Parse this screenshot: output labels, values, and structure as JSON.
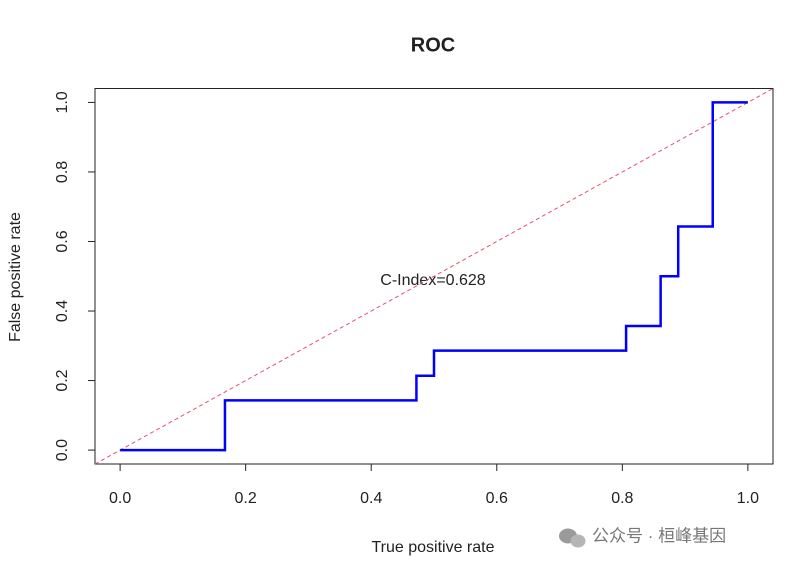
{
  "chart_data": {
    "type": "line",
    "title": "ROC",
    "x_label": "True positive rate",
    "y_label": "False positive rate",
    "x": [
      0,
      0.167,
      0.167,
      0.472,
      0.472,
      0.5,
      0.5,
      0.806,
      0.806,
      0.861,
      0.861,
      0.889,
      0.889,
      0.944,
      0.944,
      1
    ],
    "series": [
      {
        "color": "#0000ff",
        "values": [
          0,
          0,
          0.143,
          0.143,
          0.214,
          0.214,
          0.286,
          0.286,
          0.357,
          0.357,
          0.5,
          0.5,
          0.643,
          0.643,
          1,
          1
        ]
      }
    ],
    "diagonal": true,
    "diagonal_color": "#e8506e",
    "annotation": "C-Index=0.628",
    "xlim": [
      -0.04,
      1.04
    ],
    "ylim": [
      -0.04,
      1.04
    ],
    "xticks": [
      {
        "value": 0,
        "label": "0.0"
      },
      0.2,
      0.4,
      0.6,
      0.8,
      {
        "value": 1,
        "label": "1.0"
      }
    ],
    "yticks": [
      {
        "value": 0,
        "label": "0.0"
      },
      0.2,
      0.4,
      0.6,
      0.8,
      {
        "value": 1,
        "label": "1.0"
      }
    ]
  },
  "watermark": "公众号 · 桓峰基因"
}
